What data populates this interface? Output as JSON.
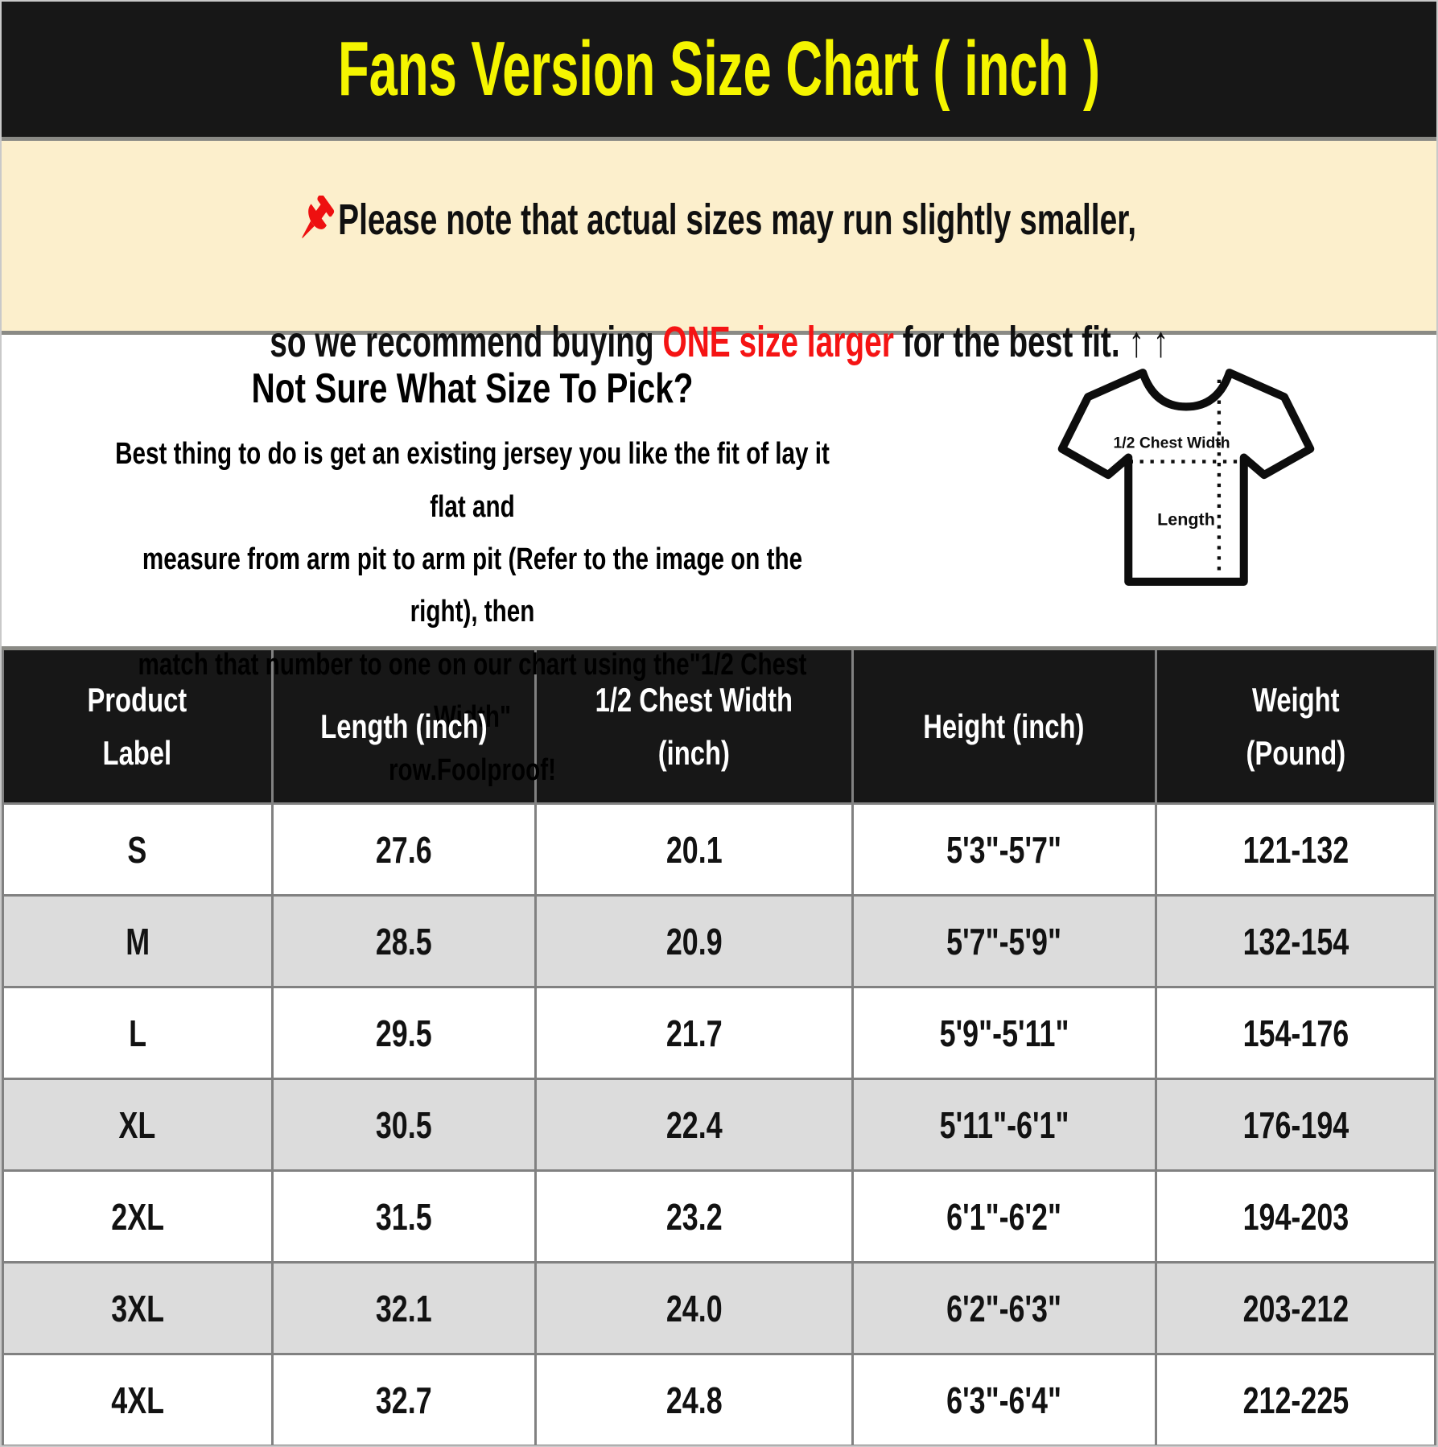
{
  "header": {
    "title": "Fans Version Size Chart ( inch )"
  },
  "notice": {
    "pin_icon": "red-pushpin",
    "line1": "Please note that actual sizes may run slightly smaller,",
    "line2_prefix": "so we recommend buying ",
    "line2_highlight": "ONE size larger",
    "line2_suffix": " for the best fit. ↑ ↑"
  },
  "guide": {
    "heading": "Not Sure What Size To Pick?",
    "body": "Best thing to do is get an existing jersey you like the fit of lay it flat and\nmeasure from arm pit to arm pit (Refer to the image on the right), then\nmatch that number to one on our chart using the\"1/2 Chest Width\"\nrow.Foolproof!",
    "diagram": {
      "icon": "tshirt-measurement-diagram",
      "chest_label": "1/2 Chest Width",
      "length_label": "Length"
    }
  },
  "size_table": {
    "columns_display": [
      "Product\nLabel",
      "Length (inch)",
      "1/2 Chest Width\n(inch)",
      "Height (inch)",
      "Weight\n(Pound)"
    ]
  },
  "chart_data": {
    "type": "table",
    "title": "Fans Version Size Chart ( inch )",
    "columns": [
      "Product Label",
      "Length (inch)",
      "1/2 Chest Width (inch)",
      "Height (inch)",
      "Weight (Pound)"
    ],
    "rows": [
      [
        "S",
        "27.6",
        "20.1",
        "5'3\"-5'7\"",
        "121-132"
      ],
      [
        "M",
        "28.5",
        "20.9",
        "5'7\"-5'9\"",
        "132-154"
      ],
      [
        "L",
        "29.5",
        "21.7",
        "5'9\"-5'11\"",
        "154-176"
      ],
      [
        "XL",
        "30.5",
        "22.4",
        "5'11\"-6'1\"",
        "176-194"
      ],
      [
        "2XL",
        "31.5",
        "23.2",
        "6'1\"-6'2\"",
        "194-203"
      ],
      [
        "3XL",
        "32.1",
        "24.0",
        "6'2\"-6'3\"",
        "203-212"
      ],
      [
        "4XL",
        "32.7",
        "24.8",
        "6'3\"-6'4\"",
        "212-225"
      ]
    ]
  },
  "colors": {
    "header_bg": "#171717",
    "title_yellow": "#f5f500",
    "notice_bg": "#fcefcc",
    "accent_red": "#f51414",
    "row_stripe_gray": "#dcdcdc",
    "grid_gray": "#818181"
  }
}
